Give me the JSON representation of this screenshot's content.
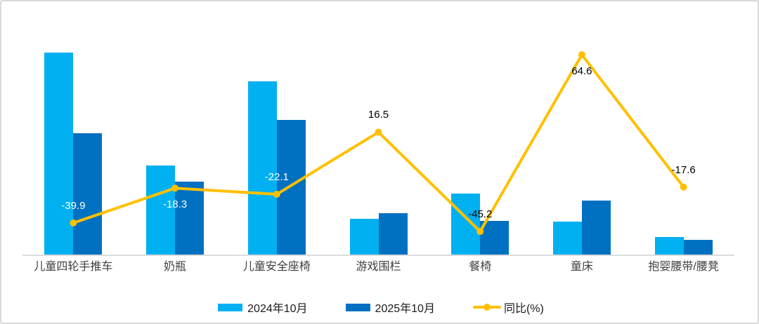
{
  "frame": {
    "background": "#ffffff",
    "border_color": "#d9d9d9",
    "axis_color": "#dcdcdc"
  },
  "chart_data": {
    "type": "bar+line",
    "title": "",
    "categories": [
      "儿童四轮手推车",
      "奶瓶",
      "儿童安全座椅",
      "游戏围栏",
      "餐椅",
      "童床",
      "抱婴腰带/腰凳"
    ],
    "series": [
      {
        "name": "2024年10月",
        "type": "bar",
        "color": "#00B0F0",
        "values": [
          100,
          44,
          85.8,
          17.7,
          30.2,
          16.3,
          8.7
        ]
      },
      {
        "name": "2025年10月",
        "type": "bar",
        "color": "#0070C0",
        "values": [
          60.1,
          36,
          66.8,
          20.6,
          16.6,
          26.8,
          7.2
        ]
      },
      {
        "name": "同比(%)",
        "type": "line",
        "color": "#FFC000",
        "values": [
          -39.9,
          -18.3,
          -22.1,
          16.5,
          -45.2,
          64.6,
          -17.6
        ],
        "point_labels": [
          "-39.9",
          "-18.3",
          "-22.1",
          "16.5",
          "-45.2",
          "64.6",
          "-17.6"
        ],
        "label_positions": [
          "above",
          "below",
          "above",
          "above",
          "above",
          "below",
          "above"
        ],
        "label_colors": [
          "#ffffff",
          "#ffffff",
          "#ffffff",
          "#000000",
          "#000000",
          "#000000",
          "#000000"
        ]
      }
    ],
    "legend_position": "bottom",
    "grid": false,
    "value_axis_visible": false,
    "note": "bar values are estimated relative heights (max bar = 100); no value axis is shown in the image"
  }
}
